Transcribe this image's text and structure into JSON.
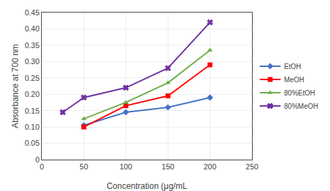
{
  "chart_data": {
    "type": "line",
    "x_label": "Concentration (μg/mL",
    "y_label": "Absorbance at 700 nm",
    "x": [
      25,
      50,
      100,
      150,
      200
    ],
    "series": [
      {
        "name": "EtOH",
        "color": "#4472C4",
        "marker": "diamond",
        "values": [
          null,
          0.105,
          0.145,
          0.16,
          0.19
        ]
      },
      {
        "name": "MeOH",
        "color": "#FF0000",
        "marker": "square",
        "values": [
          null,
          0.1,
          0.165,
          0.195,
          0.29
        ]
      },
      {
        "name": "80%EtOH",
        "color": "#70AD47",
        "marker": "triangle-up",
        "values": [
          null,
          0.125,
          0.175,
          0.235,
          0.335
        ]
      },
      {
        "name": "80%MeOH",
        "color": "#7030A0",
        "marker": "x",
        "values": [
          0.145,
          0.19,
          0.22,
          0.28,
          0.42
        ]
      }
    ],
    "xlim": [
      0,
      250
    ],
    "xticks": [
      0,
      50,
      100,
      150,
      200,
      250
    ],
    "ylim": [
      0,
      0.45
    ],
    "yticks": [
      0,
      0.05,
      {
        "value": 0.1,
        "label": "0.10"
      },
      0.15,
      {
        "value": 0.2,
        "label": "0.20"
      },
      0.25,
      {
        "value": 0.3,
        "label": "0.30"
      },
      0.35,
      {
        "value": 0.4,
        "label": "0.40"
      },
      0.45
    ],
    "grid": true,
    "legend": "right"
  }
}
